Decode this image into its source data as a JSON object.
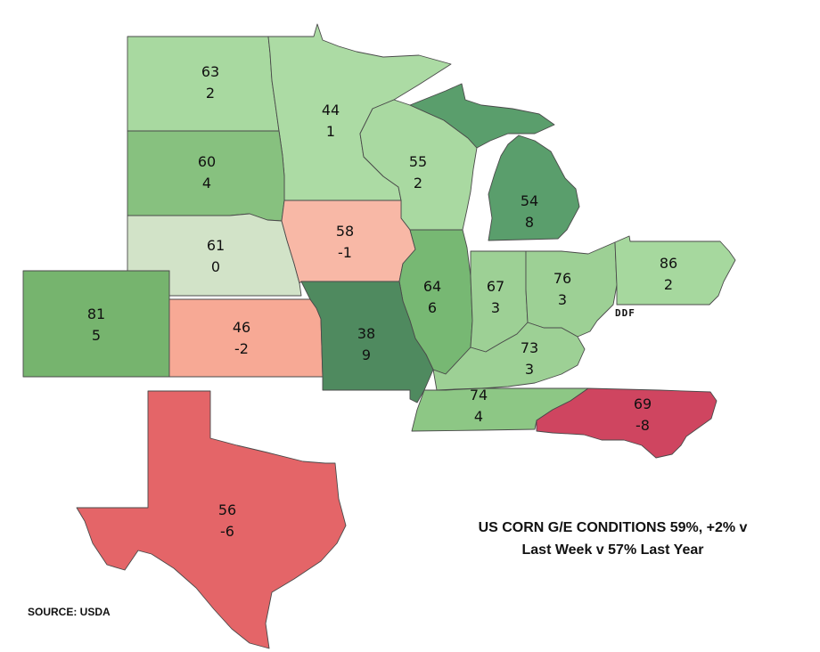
{
  "headline_line1": "US CORN G/E CONDITIONS 59%, +2% v",
  "headline_line2": "Last Week v 57% Last Year",
  "source": "SOURCE: USDA",
  "logo": "DDF",
  "states": [
    {
      "id": "north-dakota",
      "value": "63",
      "change": "2",
      "color": "#a8d9a0"
    },
    {
      "id": "minnesota",
      "value": "44",
      "change": "1",
      "color": "#acdba4"
    },
    {
      "id": "south-dakota",
      "value": "60",
      "change": "4",
      "color": "#87c17f"
    },
    {
      "id": "wisconsin",
      "value": "55",
      "change": "2",
      "color": "#a9d9a1"
    },
    {
      "id": "michigan",
      "value": "54",
      "change": "8",
      "color": "#5a9e6c"
    },
    {
      "id": "nebraska",
      "value": "61",
      "change": "0",
      "color": "#d2e3c8"
    },
    {
      "id": "iowa",
      "value": "58",
      "change": "-1",
      "color": "#f8b8a6"
    },
    {
      "id": "illinois",
      "value": "64",
      "change": "6",
      "color": "#77b873"
    },
    {
      "id": "indiana",
      "value": "67",
      "change": "3",
      "color": "#9dd095"
    },
    {
      "id": "ohio",
      "value": "76",
      "change": "3",
      "color": "#9dd095"
    },
    {
      "id": "pennsylvania",
      "value": "86",
      "change": "2",
      "color": "#a6d89e"
    },
    {
      "id": "colorado",
      "value": "81",
      "change": "5",
      "color": "#76b46e"
    },
    {
      "id": "kansas",
      "value": "46",
      "change": "-2",
      "color": "#f7a995"
    },
    {
      "id": "missouri",
      "value": "38",
      "change": "9",
      "color": "#4f8a5f"
    },
    {
      "id": "kentucky",
      "value": "73",
      "change": "3",
      "color": "#9dd095"
    },
    {
      "id": "tennessee",
      "value": "74",
      "change": "4",
      "color": "#8dc785"
    },
    {
      "id": "north-carolina",
      "value": "69",
      "change": "-8",
      "color": "#cf4560"
    },
    {
      "id": "texas",
      "value": "56",
      "change": "-6",
      "color": "#e46568"
    }
  ]
}
